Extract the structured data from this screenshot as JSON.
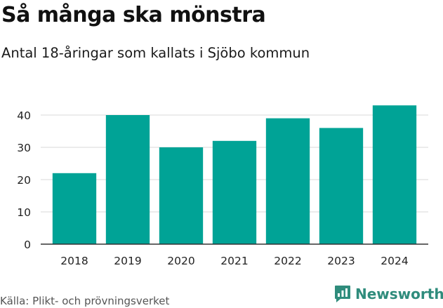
{
  "title": "Så många ska mönstra",
  "subtitle": "Antal 18-åringar som kallats i Sjöbo kommun",
  "source": "Källa: Plikt- och prövningsverket",
  "brand": {
    "name": "Newsworthy",
    "icon": "newsworthy-logo-icon",
    "color": "#2f8c7c"
  },
  "chart_data": {
    "type": "bar",
    "categories": [
      "2018",
      "2019",
      "2020",
      "2021",
      "2022",
      "2023",
      "2024"
    ],
    "values": [
      22,
      40,
      30,
      32,
      39,
      36,
      43
    ],
    "ylim": [
      0,
      45
    ],
    "yticks": [
      0,
      10,
      20,
      30,
      40
    ],
    "grid": true,
    "bar_color": "#00a396",
    "xlabel": "",
    "ylabel": ""
  }
}
